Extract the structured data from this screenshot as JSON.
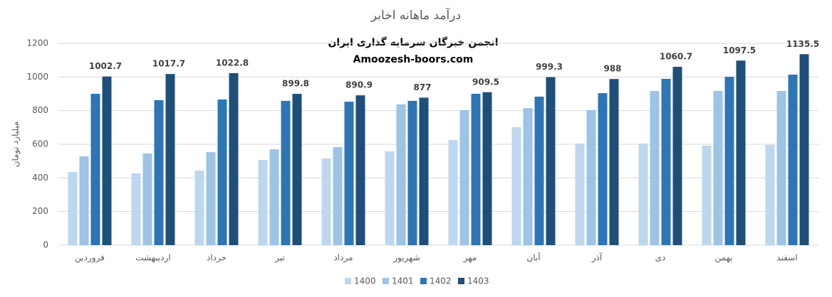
{
  "chart_data": {
    "type": "bar",
    "title": "درآمد ماهانه  اخابر",
    "annotations": [
      "انجمن خبرگان سرمایه گذاری ایران",
      "Amoozesh-boors.com"
    ],
    "y_label": "میلیارد تومان",
    "categories": [
      "فروردین",
      "اردیبهشت",
      "خرداد",
      "تیر",
      "مرداد",
      "شهریور",
      "مهر",
      "آبان",
      "آذر",
      "دی",
      "بهمن",
      "اسفند"
    ],
    "series": [
      {
        "name": "1400",
        "color": "#bdd7ee",
        "values": [
          435,
          427,
          444,
          507,
          515,
          558,
          625,
          701,
          604,
          604,
          592,
          596
        ]
      },
      {
        "name": "1401",
        "color": "#9dc3e6",
        "values": [
          528,
          545,
          553,
          570,
          583,
          837,
          803,
          815,
          803,
          917,
          917,
          917
        ]
      },
      {
        "name": "1402",
        "color": "#2e75b6",
        "values": [
          900,
          862,
          866,
          858,
          853,
          858,
          900,
          883,
          904,
          989,
          1001,
          1014
        ]
      },
      {
        "name": "1403",
        "color": "#1f4e79",
        "values": [
          1002.7,
          1017.7,
          1022.8,
          899.8,
          890.9,
          877,
          909.5,
          999.3,
          988,
          1060.7,
          1097.5,
          1135.5
        ]
      }
    ],
    "data_labels_series": "1403",
    "ylim": [
      0,
      1200
    ],
    "yticks": [
      0,
      200,
      400,
      600,
      800,
      1000,
      1200
    ],
    "grid": true,
    "legend": "bottom"
  }
}
